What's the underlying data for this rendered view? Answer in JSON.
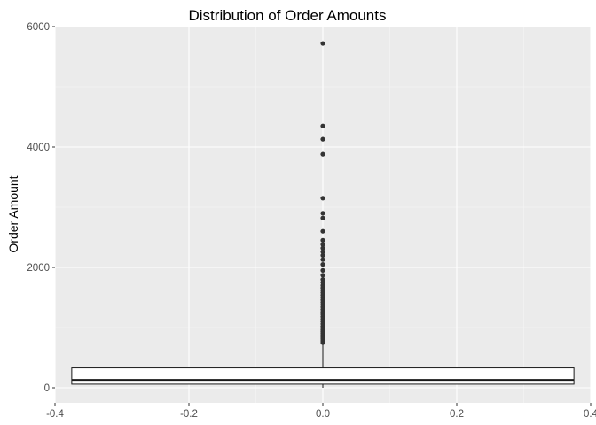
{
  "chart_data": {
    "type": "boxplot",
    "title": "Distribution of Order Amounts",
    "xlabel": "",
    "ylabel": "Order Amount",
    "xlim": [
      -0.4,
      0.4
    ],
    "ylim": [
      -250,
      6000
    ],
    "x_ticks": [
      -0.4,
      -0.2,
      0.0,
      0.2,
      0.4
    ],
    "x_tick_labels": [
      "-0.4",
      "-0.2",
      "0.0",
      "0.2",
      "0.4"
    ],
    "y_ticks": [
      0,
      2000,
      4000,
      6000
    ],
    "y_tick_labels": [
      "0",
      "2000",
      "4000",
      "6000"
    ],
    "grid": true,
    "legend": "none",
    "colors": {
      "panel_background": "#ebebeb",
      "grid_major": "#ffffff",
      "grid_minor": "#f5f5f5",
      "box_fill": "#ffffff",
      "box_line": "#1a1a1a",
      "outlier": "#333333"
    },
    "box": {
      "x_center": 0.0,
      "x_left": -0.375,
      "x_right": 0.375,
      "lower_whisker": 0,
      "q1": 60,
      "median": 130,
      "q3": 330,
      "upper_whisker": 735
    },
    "outliers": [
      750,
      780,
      810,
      840,
      870,
      900,
      930,
      960,
      990,
      1020,
      1060,
      1100,
      1140,
      1180,
      1220,
      1260,
      1300,
      1340,
      1380,
      1420,
      1460,
      1500,
      1540,
      1580,
      1620,
      1660,
      1700,
      1750,
      1800,
      1870,
      1950,
      2050,
      2130,
      2200,
      2260,
      2320,
      2380,
      2450,
      2600,
      2820,
      2900,
      3150,
      3880,
      4130,
      4350,
      5720
    ]
  }
}
